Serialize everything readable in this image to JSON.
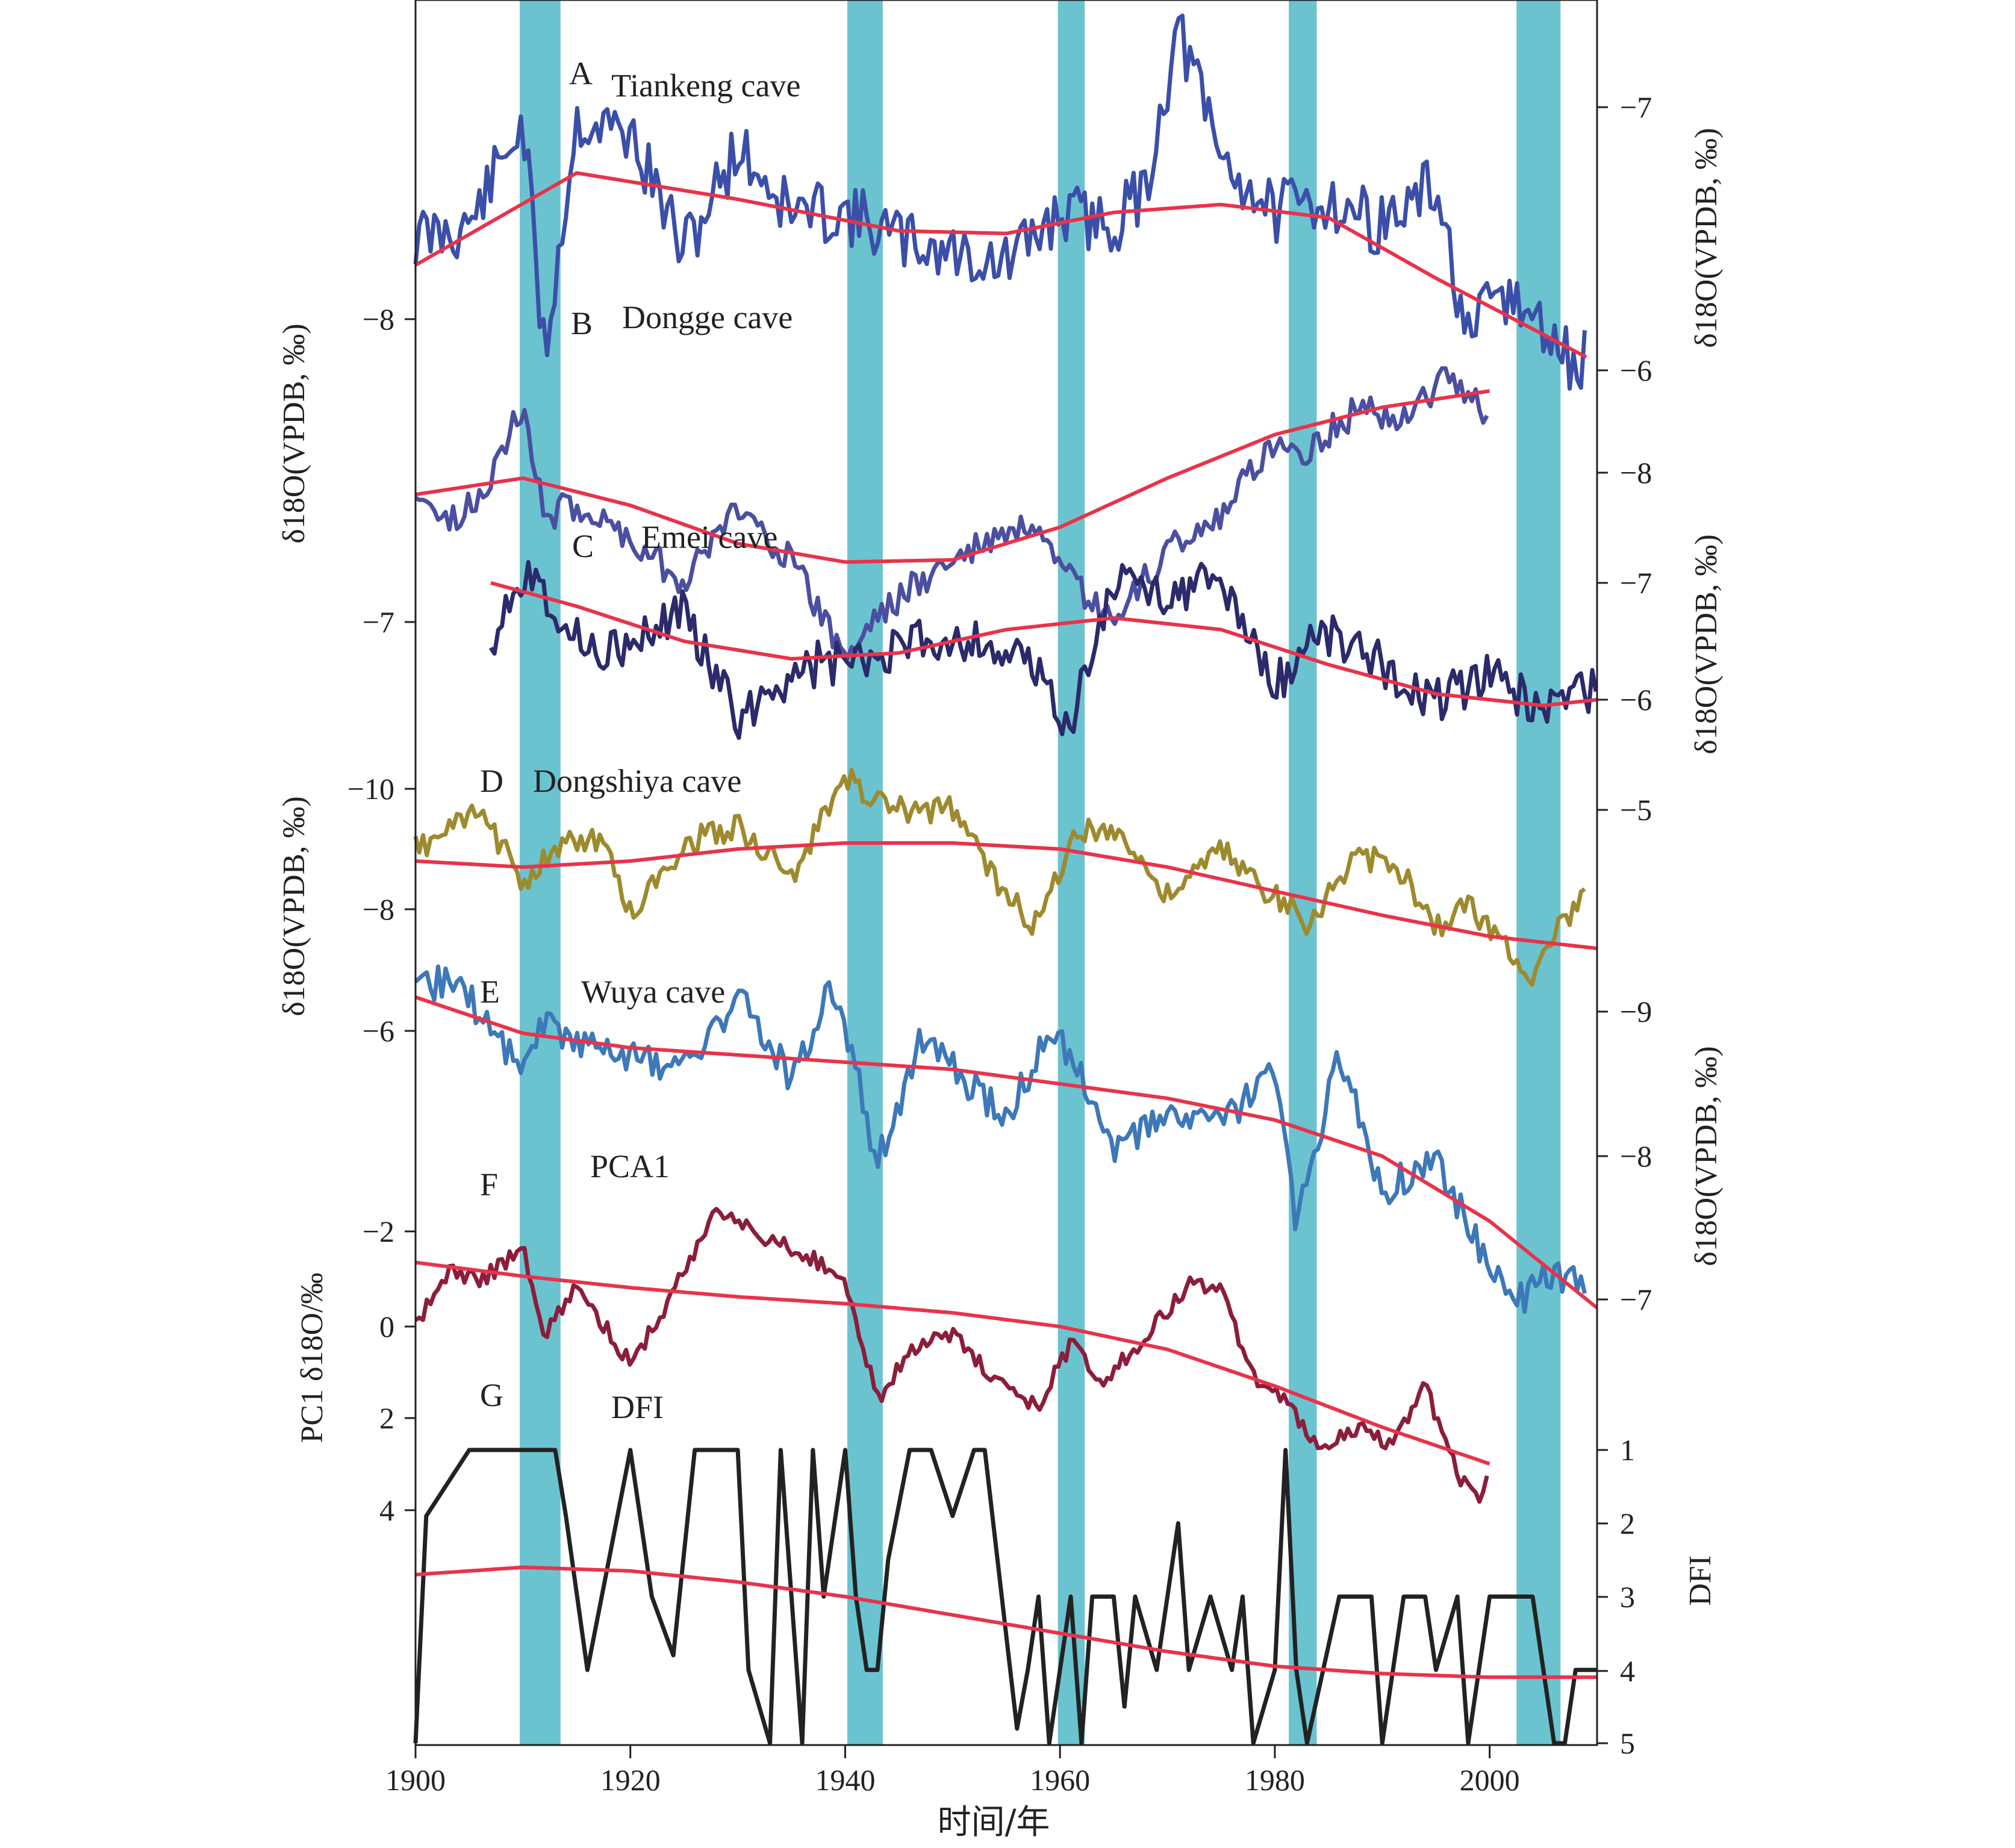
{
  "chart_data": {
    "type": "line",
    "x": {
      "range": [
        1900,
        2010
      ],
      "ticks": [
        "1900",
        "1920",
        "1940",
        "1960",
        "1980",
        "2000"
      ],
      "label": "时间/年"
    },
    "highlight_bands": [
      [
        1909.7,
        1913.5
      ],
      [
        1940.2,
        1943.5
      ],
      [
        1959.8,
        1962.3
      ],
      [
        1981.3,
        1983.9
      ],
      [
        2002.5,
        2006.6
      ]
    ],
    "highlight_color": "#5bbccb",
    "trend_color": "#e8334a",
    "axis_titles": {
      "left_top": "δ18O(VPDB, ‰)",
      "left_middle": "δ18O(VPDB, ‰)",
      "left_bottom": "PC1 δ18O/‰",
      "right_top": "δ18O(VPDB, ‰)",
      "right_upper_middle": "δ18O(VPDB, ‰)",
      "right_lower_middle": "δ18O(VPDB, ‰)",
      "right_bottom": "DFI"
    },
    "tick_labels": {
      "left": [
        "−8",
        "−7",
        "−10",
        "−8",
        "−6",
        "−2",
        "0",
        "2",
        "4"
      ],
      "right": [
        "−7",
        "−6",
        "−8",
        "−7",
        "−6",
        "−5",
        "−9",
        "−8",
        "−7",
        "1",
        "2",
        "3",
        "4",
        "5"
      ]
    },
    "panels": [
      {
        "letter": "A",
        "name": "Tiankeng cave",
        "color": "#3b4fa8",
        "noise": 0.12,
        "seed": 11,
        "series_x": [
          1900,
          1905,
          1910,
          1912,
          1915,
          1920,
          1925,
          1930,
          1935,
          1940,
          1945,
          1950,
          1955,
          1960,
          1965,
          1968,
          1971,
          1975,
          1980,
          1985,
          1990,
          1995,
          1998,
          2001,
          2005,
          2008,
          2009
        ],
        "series_y": [
          -6.5,
          -6.55,
          -6.95,
          -6.05,
          -6.95,
          -6.9,
          -6.45,
          -6.85,
          -6.6,
          -6.6,
          -6.5,
          -6.45,
          -6.4,
          -6.6,
          -6.55,
          -6.7,
          -7.3,
          -6.8,
          -6.6,
          -6.65,
          -6.55,
          -6.7,
          -6.1,
          -6.3,
          -6.15,
          -6.0,
          -6.05
        ],
        "trend_x": [
          1900,
          1915,
          1930,
          1945,
          1955,
          1965,
          1975,
          1985,
          1995,
          2009
        ],
        "trend_y": [
          -6.4,
          -6.75,
          -6.65,
          -6.53,
          -6.52,
          -6.6,
          -6.63,
          -6.58,
          -6.35,
          -6.05
        ],
        "label_pos": "top"
      },
      {
        "letter": "B",
        "name": "Dongge cave",
        "color": "#4a4fa0",
        "noise": 0.15,
        "seed": 23,
        "series_x": [
          1900,
          1903,
          1906,
          1910,
          1912,
          1915,
          1920,
          1925,
          1930,
          1935,
          1940,
          1943,
          1947,
          1952,
          1957,
          1960,
          1965,
          1970,
          1975,
          1980,
          1983,
          1988,
          1992,
          1996,
          2000
        ],
        "series_y": [
          -7.9,
          -7.5,
          -7.8,
          -8.6,
          -7.6,
          -7.7,
          -7.4,
          -7.0,
          -7.7,
          -7.2,
          -6.3,
          -6.7,
          -7.0,
          -7.3,
          -7.5,
          -7.1,
          -6.6,
          -7.3,
          -7.6,
          -8.3,
          -8.2,
          -8.6,
          -8.5,
          -8.9,
          -8.5
        ],
        "trend_x": [
          1900,
          1910,
          1920,
          1930,
          1940,
          1950,
          1960,
          1970,
          1980,
          1990,
          2000
        ],
        "trend_y": [
          -7.8,
          -7.95,
          -7.7,
          -7.35,
          -7.18,
          -7.2,
          -7.5,
          -7.95,
          -8.35,
          -8.6,
          -8.75
        ],
        "label_pos": "top"
      },
      {
        "letter": "C",
        "name": "Emei cave",
        "color": "#2b2a6a",
        "noise": 0.2,
        "seed": 37,
        "series_x": [
          1907,
          1909,
          1911,
          1915,
          1920,
          1925,
          1930,
          1933,
          1937,
          1942,
          1947,
          1952,
          1957,
          1961,
          1965,
          1970,
          1975,
          1980,
          1984,
          1990,
          1995,
          2000,
          2005,
          2010
        ],
        "series_y": [
          -6.5,
          -7.0,
          -7.1,
          -6.5,
          -6.4,
          -6.8,
          -5.8,
          -6.1,
          -6.3,
          -6.3,
          -6.5,
          -6.5,
          -6.3,
          -5.8,
          -7.0,
          -6.9,
          -7.0,
          -6.1,
          -6.6,
          -6.3,
          -6.0,
          -6.2,
          -5.9,
          -6.1
        ],
        "trend_x": [
          1907,
          1915,
          1925,
          1935,
          1945,
          1955,
          1965,
          1975,
          1985,
          1995,
          2005,
          2010
        ],
        "trend_y": [
          -7.0,
          -6.8,
          -6.5,
          -6.35,
          -6.4,
          -6.6,
          -6.7,
          -6.6,
          -6.3,
          -6.05,
          -5.95,
          -6.0
        ],
        "label_pos": "top"
      },
      {
        "letter": "D",
        "name": "Dongshiya cave",
        "color": "#9e8a2e",
        "noise": 0.22,
        "seed": 53,
        "series_x": [
          1900,
          1904,
          1906,
          1910,
          1915,
          1918,
          1920,
          1925,
          1930,
          1935,
          1940,
          1943,
          1946,
          1950,
          1955,
          1958,
          1961,
          1965,
          1970,
          1975,
          1980,
          1983,
          1988,
          1992,
          1995,
          1998,
          2002,
          2004,
          2006,
          2009
        ],
        "series_y": [
          -9.0,
          -9.4,
          -9.6,
          -8.5,
          -9.2,
          -9.0,
          -7.9,
          -9.1,
          -9.4,
          -8.5,
          -10.2,
          -9.8,
          -9.6,
          -9.7,
          -8.2,
          -7.7,
          -9.2,
          -9.4,
          -8.2,
          -9.0,
          -8.2,
          -7.8,
          -8.9,
          -8.6,
          -7.7,
          -8.1,
          -7.3,
          -6.9,
          -7.6,
          -8.2
        ],
        "trend_x": [
          1900,
          1910,
          1920,
          1930,
          1940,
          1950,
          1960,
          1970,
          1980,
          1990,
          2000,
          2010
        ],
        "trend_y": [
          -8.8,
          -8.7,
          -8.8,
          -9.0,
          -9.1,
          -9.1,
          -9.0,
          -8.7,
          -8.3,
          -7.9,
          -7.55,
          -7.35
        ],
        "label_pos": "top"
      },
      {
        "letter": "E",
        "name": "Wuya cave",
        "color": "#3d78b8",
        "noise": 0.12,
        "seed": 71,
        "series_x": [
          1900,
          1903,
          1906,
          1910,
          1912,
          1915,
          1920,
          1925,
          1930,
          1935,
          1939,
          1943,
          1947,
          1950,
          1955,
          1959,
          1962,
          1965,
          1970,
          1975,
          1980,
          1982,
          1986,
          1990,
          1995,
          2000,
          2003,
          2006,
          2009
        ],
        "series_y": [
          -9.1,
          -9.25,
          -9.0,
          -8.6,
          -8.95,
          -8.8,
          -8.7,
          -8.6,
          -9.1,
          -8.55,
          -9.2,
          -7.95,
          -8.8,
          -8.6,
          -8.25,
          -8.85,
          -8.6,
          -8.0,
          -8.3,
          -8.2,
          -8.6,
          -7.5,
          -8.7,
          -7.75,
          -8.0,
          -7.2,
          -7.0,
          -7.2,
          -7.1
        ],
        "trend_x": [
          1900,
          1910,
          1920,
          1930,
          1940,
          1950,
          1960,
          1970,
          1980,
          1990,
          2000,
          2010
        ],
        "trend_y": [
          -9.1,
          -8.85,
          -8.75,
          -8.7,
          -8.65,
          -8.6,
          -8.5,
          -8.4,
          -8.25,
          -8.0,
          -7.55,
          -6.95
        ],
        "label_pos": "top"
      },
      {
        "letter": "F",
        "name": "PCA1",
        "color": "#8b1e3a",
        "noise": 0.18,
        "seed": 89,
        "series_x": [
          1900,
          1903,
          1906,
          1910,
          1912,
          1915,
          1920,
          1923,
          1928,
          1932,
          1937,
          1940,
          1943,
          1946,
          1950,
          1955,
          1958,
          1961,
          1964,
          1968,
          1972,
          1975,
          1978,
          1981,
          1984,
          1988,
          1991,
          1994,
          1997,
          1999,
          2000
        ],
        "series_y": [
          0.0,
          -1.2,
          -1.0,
          -1.7,
          0.2,
          -0.9,
          0.8,
          -0.3,
          -2.6,
          -2.0,
          -1.5,
          -1.0,
          1.6,
          0.5,
          0.2,
          1.4,
          1.7,
          0.4,
          1.2,
          0.2,
          -0.9,
          -0.8,
          1.1,
          1.6,
          2.6,
          2.2,
          2.6,
          1.3,
          3.2,
          3.8,
          3.0
        ],
        "trend_x": [
          1900,
          1910,
          1920,
          1930,
          1940,
          1950,
          1960,
          1970,
          1980,
          1990,
          2000
        ],
        "trend_y": [
          -1.4,
          -1.1,
          -0.85,
          -0.65,
          -0.5,
          -0.3,
          0.0,
          0.5,
          1.3,
          2.2,
          3.0
        ],
        "label_pos": "top"
      },
      {
        "letter": "G",
        "name": "DFI",
        "color": "#222222",
        "noise": 0,
        "seed": 0,
        "series_x": [
          1900,
          1901,
          1905,
          1907,
          1913,
          1914,
          1916,
          1918,
          1920,
          1922,
          1924,
          1926,
          1930,
          1931,
          1933,
          1934,
          1936,
          1937,
          1938,
          1940,
          1941,
          1942,
          1943,
          1944,
          1946,
          1948,
          1950,
          1952,
          1953,
          1956,
          1957,
          1958,
          1959,
          1961,
          1962,
          1963,
          1965,
          1966,
          1967,
          1969,
          1971,
          1972,
          1974,
          1976,
          1977,
          1978,
          1980,
          1981,
          1982,
          1983,
          1986,
          1987,
          1988,
          1989,
          1990,
          1992,
          1994,
          1995,
          1997,
          1998,
          2000,
          2001,
          2003,
          2004,
          2006,
          2007,
          2008,
          2010
        ],
        "series_y": [
          5.0,
          1.9,
          1.0,
          1.0,
          1.0,
          1.9,
          4.0,
          2.5,
          1.0,
          3.0,
          3.8,
          1.0,
          1.0,
          4.0,
          5.0,
          1.0,
          5.0,
          1.0,
          3.0,
          1.0,
          3.0,
          4.0,
          4.0,
          2.5,
          1.0,
          1.0,
          1.9,
          1.0,
          1.0,
          4.8,
          4.0,
          3.0,
          5.0,
          3.0,
          5.0,
          3.0,
          3.0,
          4.5,
          3.0,
          4.0,
          2.0,
          4.0,
          3.0,
          4.0,
          3.0,
          5.0,
          4.0,
          1.0,
          4.0,
          5.0,
          3.0,
          3.0,
          3.0,
          3.0,
          5.0,
          3.0,
          3.0,
          4.0,
          3.0,
          5.0,
          3.0,
          3.0,
          3.0,
          3.0,
          5.0,
          5.0,
          4.0,
          4.0
        ],
        "trend_x": [
          1900,
          1910,
          1920,
          1930,
          1940,
          1950,
          1960,
          1970,
          1980,
          1990,
          2000,
          2010
        ],
        "trend_y": [
          2.7,
          2.6,
          2.65,
          2.8,
          3.0,
          3.25,
          3.5,
          3.75,
          3.95,
          4.05,
          4.1,
          4.1
        ],
        "label_pos": "top"
      }
    ]
  }
}
